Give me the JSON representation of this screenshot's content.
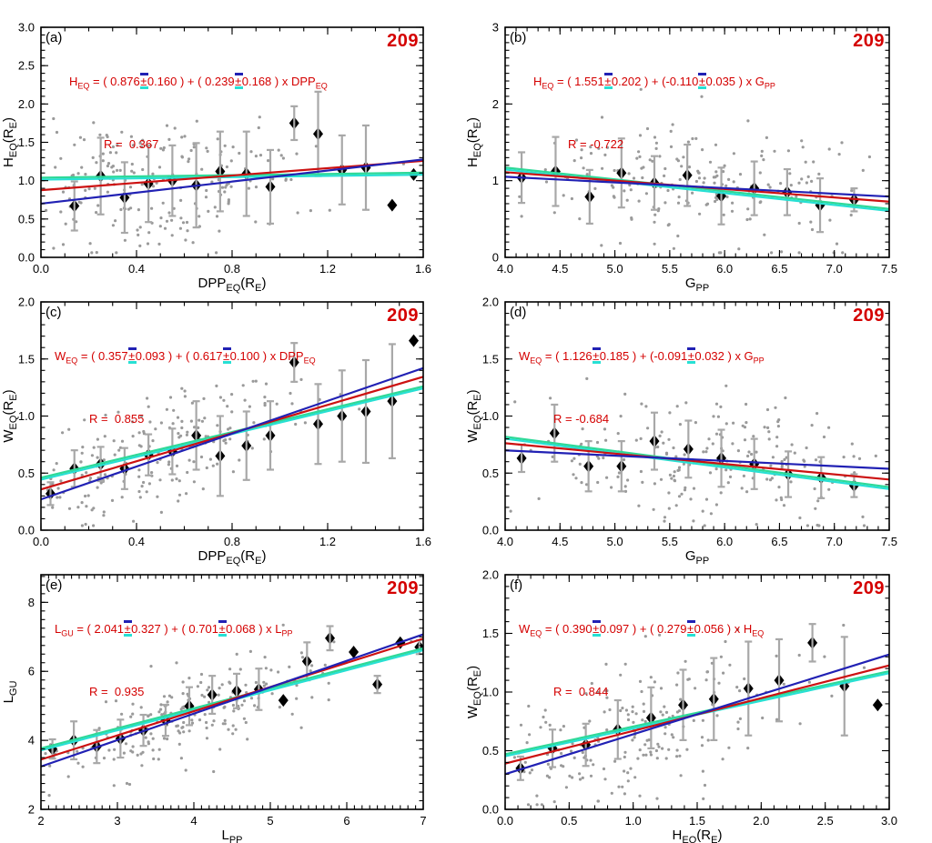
{
  "figure": {
    "colors": {
      "fit_red": "#cc1111",
      "fit_blue": "#2121b4",
      "fit_green": "#2ed998",
      "fit_cyan": "#27e0d4",
      "annotation_red": "#d40000",
      "scatter_gray": "#9a9a9a",
      "errorbar_gray": "#a8a8a8",
      "diamond_black": "#000000",
      "axis_black": "#000000"
    }
  },
  "chart_data": [
    {
      "id": "a",
      "type": "scatter",
      "panel_label": "(a)",
      "n": 209,
      "n_label": "209",
      "xlabel": "DPP_EQ(R_E)",
      "ylabel": "H_EQ(R_E)",
      "xlim": [
        0,
        1.6
      ],
      "ylim": [
        0,
        3
      ],
      "xticks": {
        "values": [
          0,
          0.4,
          0.8,
          1.2,
          1.6
        ],
        "labels": [
          "0.0",
          "0.4",
          "0.8",
          "1.2",
          "1.6"
        ],
        "minor": 0.1
      },
      "yticks": {
        "values": [
          0,
          0.5,
          1,
          1.5,
          2,
          2.5,
          3
        ],
        "labels": [
          "0.0",
          "0.5",
          "1.0",
          "1.5",
          "2.0",
          "2.5",
          "3.0"
        ],
        "minor": 0.1
      },
      "equation": {
        "y": "H_EQ",
        "a": "0.876",
        "a_err": "0.160",
        "b": "0.239",
        "b_err": "0.168",
        "x": "DPP_EQ",
        "text": "H_EQ = ( 0.876±0.160 ) + ( 0.239±0.168 ) x DPP_EQ"
      },
      "r": 0.367,
      "r_label": "R =  0.367",
      "fits": {
        "red": [
          0.876,
          0.239
        ],
        "blue": [
          0.7,
          0.36
        ],
        "green": [
          1.04,
          0.04
        ]
      },
      "binned_means": {
        "x": [
          0.14,
          0.25,
          0.35,
          0.45,
          0.55,
          0.65,
          0.75,
          0.86,
          0.96,
          1.06,
          1.16,
          1.26,
          1.36,
          1.47,
          1.56
        ],
        "y": [
          0.67,
          1.06,
          0.78,
          0.96,
          1.0,
          0.94,
          1.12,
          1.09,
          0.92,
          1.75,
          1.61,
          1.14,
          1.17,
          0.68,
          1.08
        ],
        "yerr": [
          0.32,
          0.5,
          0.46,
          0.5,
          0.46,
          0.55,
          0.52,
          0.55,
          0.48,
          0.22,
          0.55,
          0.45,
          0.55,
          0,
          0
        ]
      },
      "scatter": {
        "seed": 101,
        "n": 209,
        "x_mean": 0.45,
        "x_sd": 0.33,
        "x_range": [
          0.02,
          1.57
        ],
        "y_sigma": 0.42
      }
    },
    {
      "id": "b",
      "type": "scatter",
      "panel_label": "(b)",
      "n": 209,
      "n_label": "209",
      "xlabel": "G_PP",
      "ylabel": "H_EQ(R_E)",
      "xlim": [
        4,
        7.5
      ],
      "ylim": [
        0,
        3
      ],
      "xticks": {
        "values": [
          4,
          4.5,
          5,
          5.5,
          6,
          6.5,
          7,
          7.5
        ],
        "labels": [
          "4.0",
          "4.5",
          "5.0",
          "5.5",
          "6.0",
          "6.5",
          "7.0",
          "7.5"
        ],
        "minor": 0.1
      },
      "yticks": {
        "values": [
          0,
          1,
          2,
          3
        ],
        "labels": [
          "0",
          "1",
          "2",
          "3"
        ],
        "minor": 0.1
      },
      "equation": {
        "y": "H_EQ",
        "a": "1.551",
        "a_err": "0.202",
        "b": "-0.110",
        "b_err": "0.035",
        "x": "G_PP",
        "text": "H_EQ = ( 1.551±0.202 ) + (-0.110±0.035 ) x G_PP"
      },
      "r": -0.722,
      "r_label": "R = -0.722",
      "fits": {
        "red": [
          1.551,
          -0.11
        ],
        "blue": [
          1.347,
          -0.074
        ],
        "green": [
          1.787,
          -0.154
        ]
      },
      "binned_means": {
        "x": [
          4.15,
          4.46,
          4.77,
          5.06,
          5.36,
          5.66,
          5.97,
          6.27,
          6.57,
          6.87,
          7.18
        ],
        "y": [
          1.04,
          1.12,
          0.79,
          1.1,
          0.97,
          1.07,
          0.8,
          0.9,
          0.85,
          0.68,
          0.75
        ],
        "yerr": [
          0.33,
          0.45,
          0.35,
          0.45,
          0.35,
          0.4,
          0.37,
          0.35,
          0.3,
          0.35,
          0.15
        ]
      },
      "scatter": {
        "seed": 102,
        "n": 209,
        "x_mean": 5.85,
        "x_sd": 0.78,
        "x_range": [
          4.05,
          7.45
        ],
        "y_sigma": 0.42
      }
    },
    {
      "id": "c",
      "type": "scatter",
      "panel_label": "(c)",
      "n": 209,
      "n_label": "209",
      "xlabel": "DPP_EQ(R_E)",
      "ylabel": "W_EQ(R_E)",
      "xlim": [
        0,
        1.6
      ],
      "ylim": [
        0,
        2
      ],
      "xticks": {
        "values": [
          0,
          0.4,
          0.8,
          1.2,
          1.6
        ],
        "labels": [
          "0.0",
          "0.4",
          "0.8",
          "1.2",
          "1.6"
        ],
        "minor": 0.1
      },
      "yticks": {
        "values": [
          0,
          0.5,
          1,
          1.5,
          2
        ],
        "labels": [
          "0.0",
          "0.5",
          "1.0",
          "1.5",
          "2.0"
        ],
        "minor": 0.1
      },
      "equation": {
        "y": "W_EQ",
        "a": "0.357",
        "a_err": "0.093",
        "b": "0.617",
        "b_err": "0.100",
        "x": "DPP_EQ",
        "text": "W_EQ = ( 0.357±0.093 ) + ( 0.617±0.100 ) x DPP_EQ"
      },
      "r": 0.855,
      "r_label": "R =  0.855",
      "fits": {
        "red": [
          0.357,
          0.617
        ],
        "blue": [
          0.27,
          0.719
        ],
        "green": [
          0.46,
          0.5
        ]
      },
      "binned_means": {
        "x": [
          0.04,
          0.14,
          0.25,
          0.35,
          0.45,
          0.55,
          0.65,
          0.75,
          0.86,
          0.96,
          1.06,
          1.16,
          1.26,
          1.36,
          1.47,
          1.56
        ],
        "y": [
          0.32,
          0.54,
          0.58,
          0.54,
          0.66,
          0.69,
          0.83,
          0.65,
          0.74,
          0.83,
          1.47,
          0.93,
          1.0,
          1.04,
          1.13,
          1.66
        ],
        "yerr": [
          0.1,
          0.16,
          0.15,
          0.18,
          0.18,
          0.2,
          0.3,
          0.35,
          0.3,
          0.3,
          0.17,
          0.35,
          0.4,
          0.45,
          0.5,
          0
        ]
      },
      "scatter": {
        "seed": 103,
        "n": 209,
        "x_mean": 0.45,
        "x_sd": 0.33,
        "x_range": [
          0.02,
          1.57
        ],
        "y_sigma": 0.23
      }
    },
    {
      "id": "d",
      "type": "scatter",
      "panel_label": "(d)",
      "n": 209,
      "n_label": "209",
      "xlabel": "G_PP",
      "ylabel": "W_EQ(R_E)",
      "xlim": [
        4,
        7.5
      ],
      "ylim": [
        0,
        2
      ],
      "xticks": {
        "values": [
          4,
          4.5,
          5,
          5.5,
          6,
          6.5,
          7,
          7.5
        ],
        "labels": [
          "4.0",
          "4.5",
          "5.0",
          "5.5",
          "6.0",
          "6.5",
          "7.0",
          "7.5"
        ],
        "minor": 0.1
      },
      "yticks": {
        "values": [
          0,
          0.5,
          1,
          1.5,
          2
        ],
        "labels": [
          "0.0",
          "0.5",
          "1.0",
          "1.5",
          "2.0"
        ],
        "minor": 0.1
      },
      "equation": {
        "y": "W_EQ",
        "a": "1.126",
        "a_err": "0.185",
        "b": "-0.091",
        "b_err": "0.032",
        "x": "G_PP",
        "text": "W_EQ = ( 1.126±0.185 ) + (-0.091±0.032 ) x G_PP"
      },
      "r": -0.684,
      "r_label": "R = -0.684",
      "fits": {
        "red": [
          1.126,
          -0.091
        ],
        "blue": [
          0.883,
          -0.046
        ],
        "green": [
          1.323,
          -0.126
        ]
      },
      "binned_means": {
        "x": [
          4.15,
          4.45,
          4.76,
          5.06,
          5.36,
          5.67,
          5.97,
          6.27,
          6.58,
          6.88,
          7.18
        ],
        "y": [
          0.63,
          0.85,
          0.56,
          0.56,
          0.78,
          0.71,
          0.63,
          0.58,
          0.49,
          0.46,
          0.39
        ],
        "yerr": [
          0.12,
          0.25,
          0.22,
          0.22,
          0.25,
          0.25,
          0.25,
          0.22,
          0.2,
          0.18,
          0.1
        ]
      },
      "scatter": {
        "seed": 104,
        "n": 209,
        "x_mean": 5.85,
        "x_sd": 0.78,
        "x_range": [
          4.05,
          7.45
        ],
        "y_sigma": 0.26
      }
    },
    {
      "id": "e",
      "type": "scatter",
      "panel_label": "(e)",
      "n": 209,
      "n_label": "209",
      "xlabel": "L_PP",
      "ylabel": "L_GU",
      "xlim": [
        2,
        7
      ],
      "ylim": [
        2,
        8.8
      ],
      "xticks": {
        "values": [
          2,
          3,
          4,
          5,
          6,
          7
        ],
        "labels": [
          "2",
          "3",
          "4",
          "5",
          "6",
          "7"
        ],
        "minor": 0.1
      },
      "yticks": {
        "values": [
          2,
          4,
          6,
          8
        ],
        "labels": [
          "2",
          "4",
          "6",
          "8"
        ],
        "minor": 0.25
      },
      "equation": {
        "y": "L_GU",
        "a": "2.041",
        "a_err": "0.327",
        "b": "0.701",
        "b_err": "0.068",
        "x": "L_PP",
        "text": "L_GU = ( 2.041±0.327 ) + ( 0.701±0.068 ) x L_PP"
      },
      "r": 0.935,
      "r_label": "R =  0.935",
      "fits": {
        "red": [
          2.041,
          0.701
        ],
        "blue": [
          1.71,
          0.766
        ],
        "green": [
          2.61,
          0.58
        ]
      },
      "binned_means": {
        "x": [
          2.15,
          2.43,
          2.73,
          3.04,
          3.34,
          3.63,
          3.94,
          4.24,
          4.56,
          4.85,
          5.17,
          5.48,
          5.78,
          6.09,
          6.4,
          6.7,
          6.95
        ],
        "y": [
          3.75,
          4.0,
          3.82,
          4.05,
          4.29,
          4.58,
          4.99,
          5.32,
          5.43,
          5.48,
          5.16,
          6.29,
          6.96,
          6.56,
          5.62,
          6.83,
          6.7
        ],
        "yerr": [
          0.28,
          0.55,
          0.48,
          0.55,
          0.45,
          0.45,
          0.55,
          0.55,
          0.5,
          0.6,
          0,
          0.55,
          0.35,
          0,
          0.25,
          0,
          0.2
        ]
      },
      "scatter": {
        "seed": 105,
        "n": 209,
        "x_mean": 3.9,
        "x_sd": 0.95,
        "x_range": [
          2.05,
          6.9
        ],
        "y_sigma": 0.6
      }
    },
    {
      "id": "f",
      "type": "scatter",
      "panel_label": "(f)",
      "n": 209,
      "n_label": "209",
      "xlabel": "H_EQ(R_E)",
      "ylabel": "W_EQ(R_E)",
      "xlim": [
        0,
        3
      ],
      "ylim": [
        0,
        2
      ],
      "xticks": {
        "values": [
          0,
          0.5,
          1,
          1.5,
          2,
          2.5,
          3
        ],
        "labels": [
          "0.0",
          "0.5",
          "1.0",
          "1.5",
          "2.0",
          "2.5",
          "3.0"
        ],
        "minor": 0.1
      },
      "yticks": {
        "values": [
          0,
          0.5,
          1,
          1.5,
          2
        ],
        "labels": [
          "0.0",
          "0.5",
          "1.0",
          "1.5",
          "2.0"
        ],
        "minor": 0.1
      },
      "equation": {
        "y": "W_EQ",
        "a": "0.390",
        "a_err": "0.097",
        "b": "0.279",
        "b_err": "0.056",
        "x": "H_EQ",
        "text": "W_EQ = ( 0.390±0.097 ) + ( 0.279±0.056 ) x H_EQ"
      },
      "r": 0.844,
      "r_label": "R =  0.844",
      "fits": {
        "red": [
          0.39,
          0.279
        ],
        "blue": [
          0.3,
          0.34
        ],
        "green": [
          0.47,
          0.236
        ]
      },
      "binned_means": {
        "x": [
          0.12,
          0.37,
          0.63,
          0.88,
          1.14,
          1.39,
          1.63,
          1.9,
          2.14,
          2.4,
          2.65,
          2.91
        ],
        "y": [
          0.35,
          0.52,
          0.55,
          0.68,
          0.78,
          0.89,
          0.94,
          1.03,
          1.1,
          1.42,
          1.05,
          0.89
        ],
        "yerr": [
          0.1,
          0.16,
          0.18,
          0.25,
          0.26,
          0.3,
          0.35,
          0.4,
          0.35,
          0.16,
          0.42,
          0
        ]
      },
      "scatter": {
        "seed": 106,
        "n": 209,
        "x_mean": 1.05,
        "x_sd": 0.62,
        "x_range": [
          0.05,
          2.95
        ],
        "y_sigma": 0.28
      }
    }
  ]
}
